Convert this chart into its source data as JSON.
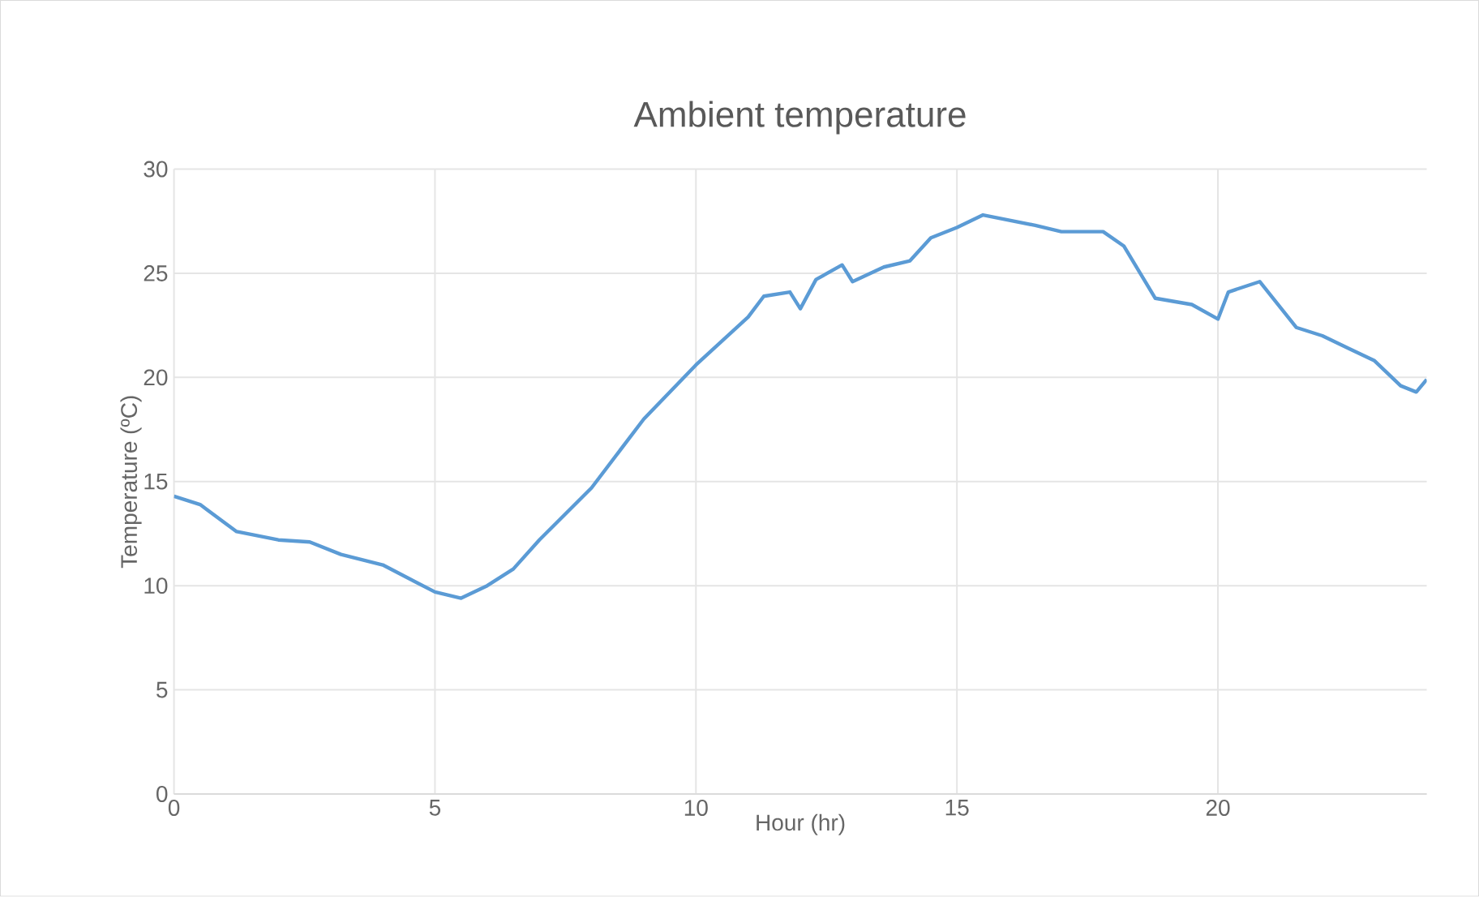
{
  "chart_data": {
    "type": "line",
    "title": "Ambient temperature",
    "xlabel": "Hour (hr)",
    "ylabel": "Temperature (ºC)",
    "x": [
      0,
      0.5,
      1.2,
      2,
      2.6,
      3.2,
      4,
      5,
      5.5,
      6,
      6.5,
      7,
      8,
      9,
      10,
      11,
      11.3,
      11.8,
      12,
      12.3,
      12.8,
      13,
      13.6,
      14.1,
      14.5,
      15,
      15.5,
      16.5,
      17,
      17.8,
      18.2,
      18.8,
      19.5,
      20,
      20.2,
      20.8,
      21.5,
      22,
      22.5,
      23,
      23.5,
      23.8,
      24
    ],
    "series": [
      {
        "color": "#5b9bd5",
        "values": [
          14.3,
          13.9,
          12.6,
          12.2,
          12.1,
          11.5,
          11.0,
          9.7,
          9.4,
          10.0,
          10.8,
          12.2,
          14.7,
          18.0,
          20.6,
          22.9,
          23.9,
          24.1,
          23.3,
          24.7,
          25.4,
          24.6,
          25.3,
          25.6,
          26.7,
          27.2,
          27.8,
          27.3,
          27.0,
          27.0,
          26.3,
          23.8,
          23.5,
          22.8,
          24.1,
          24.6,
          22.4,
          22.0,
          21.4,
          20.8,
          19.6,
          19.3,
          19.9
        ]
      }
    ],
    "xlim": [
      0,
      24
    ],
    "ylim": [
      0,
      30
    ],
    "xticks": [
      0,
      5,
      10,
      15,
      20
    ],
    "yticks": [
      0,
      5,
      10,
      15,
      20,
      25,
      30
    ],
    "grid": true,
    "marker": "none",
    "line_style": "solid"
  }
}
